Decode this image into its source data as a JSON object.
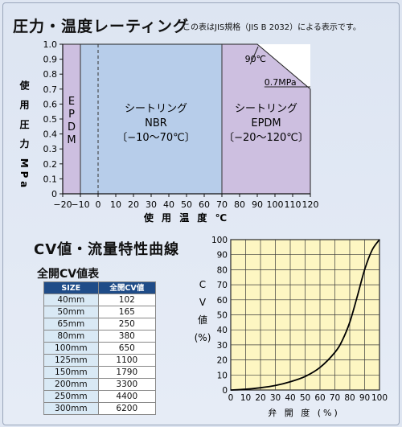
{
  "top": {
    "title": "圧力・温度レーティング",
    "note": "この表はJIS規格（JIS B 2032）による表示です。"
  },
  "pt_chart_data": {
    "type": "area",
    "xlabel": "使 用 温 度 ℃",
    "ylabel": "使 用 圧 力 MPa",
    "xlim": [
      -20,
      120
    ],
    "ylim": [
      0,
      1.0
    ],
    "x_ticks": [
      -20,
      -10,
      0,
      10,
      20,
      30,
      40,
      50,
      60,
      70,
      80,
      90,
      100,
      110,
      120
    ],
    "x_tick_labels": [
      "−20",
      "−10",
      "0",
      "10",
      "20",
      "30",
      "40",
      "50",
      "60",
      "70",
      "80",
      "90",
      "100",
      "110",
      "120"
    ],
    "y_ticks": [
      0,
      0.1,
      0.2,
      0.3,
      0.4,
      0.5,
      0.6,
      0.7,
      0.8,
      0.9,
      1.0
    ],
    "y_tick_labels": [
      "0",
      "0.1",
      "0.2",
      "0.3",
      "0.4",
      "0.5",
      "0.6",
      "0.7",
      "0.8",
      "0.9",
      "1.0"
    ],
    "grid": false,
    "regions": [
      {
        "name": "EPDM",
        "x": [
          -20,
          -10
        ],
        "lines": [
          "E",
          "P",
          "D",
          "M"
        ],
        "color": "#cdbfe0"
      },
      {
        "name": "NBR",
        "x": [
          -10,
          70
        ],
        "lines": [
          "シートリング",
          "NBR",
          "〔−10〜70℃〕"
        ],
        "color": "#b7cdea"
      },
      {
        "name": "EPDM",
        "x": [
          70,
          120
        ],
        "lines": [
          "シートリング",
          "EPDM",
          "〔−20〜120℃〕"
        ],
        "color": "#cdbfe0"
      }
    ],
    "boundary": [
      [
        -20,
        1.0
      ],
      [
        90,
        1.0
      ],
      [
        120,
        0.7
      ],
      [
        120,
        0
      ]
    ],
    "dashed_line_x": 0,
    "annotations": [
      {
        "text": "90℃",
        "x": 90,
        "y": 1.0
      },
      {
        "text": "0.7MPa",
        "x": 120,
        "y": 0.7
      }
    ]
  },
  "cv_section": {
    "title": "CV値・流量特性曲線",
    "table_title": "全開CV値表",
    "headers": [
      "SIZE",
      "全開CV値"
    ],
    "rows": [
      [
        "40mm",
        "102"
      ],
      [
        "50mm",
        "165"
      ],
      [
        "65mm",
        "250"
      ],
      [
        "80mm",
        "380"
      ],
      [
        "100mm",
        "650"
      ],
      [
        "125mm",
        "1100"
      ],
      [
        "150mm",
        "1790"
      ],
      [
        "200mm",
        "3300"
      ],
      [
        "250mm",
        "4400"
      ],
      [
        "300mm",
        "6200"
      ]
    ]
  },
  "chart_data": {
    "type": "line",
    "xlabel": "弁 開 度 (%)",
    "ylabel_chars": [
      "C",
      "V",
      "値",
      "(%)"
    ],
    "xlim": [
      0,
      100
    ],
    "ylim": [
      0,
      100
    ],
    "x_ticks": [
      0,
      10,
      20,
      30,
      40,
      50,
      60,
      70,
      80,
      90,
      100
    ],
    "y_ticks": [
      0,
      10,
      20,
      30,
      40,
      50,
      60,
      70,
      80,
      90,
      100
    ],
    "grid": true,
    "colors": {
      "background": "#fdf6c2",
      "grid": "#3a3a3a",
      "curve": "#000000"
    },
    "series": [
      {
        "x": [
          0,
          10,
          20,
          30,
          40,
          50,
          60,
          70,
          75,
          80,
          85,
          90,
          95,
          100
        ],
        "values": [
          0,
          0.5,
          1.5,
          3,
          5.5,
          9,
          15,
          25,
          33,
          45,
          62,
          80,
          93,
          100
        ]
      }
    ]
  }
}
